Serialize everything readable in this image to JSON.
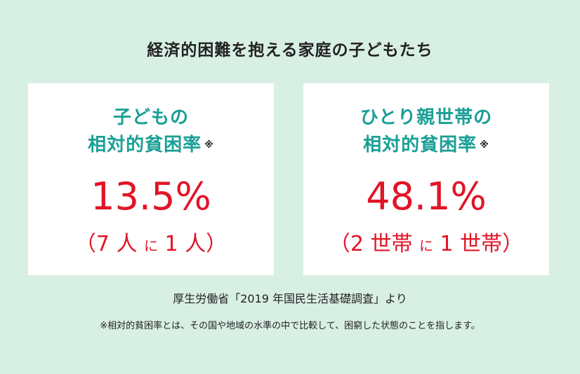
{
  "title": "経済的困難を抱える家庭の子どもたち",
  "cards": [
    {
      "label_line1": "子どもの",
      "label_line2": "相対的貧困率",
      "note_mark": "※",
      "value": "13.5%",
      "ratio_open": "（7 人 ",
      "ratio_mid": "に",
      "ratio_close": " 1 人）"
    },
    {
      "label_line1": "ひとり親世帯の",
      "label_line2": "相対的貧困率",
      "note_mark": "※",
      "value": "48.1%",
      "ratio_open": "（2 世帯 ",
      "ratio_mid": "に",
      "ratio_close": " 1 世帯）"
    }
  ],
  "source": "厚生労働省「2019 年国民生活基礎調査」より",
  "footnote": "※相対的貧困率とは、その国や地域の水準の中で比較して、困窮した状態のことを指します。",
  "colors": {
    "background": "#d8efe4",
    "label": "#1a9f96",
    "value": "#e01526"
  }
}
